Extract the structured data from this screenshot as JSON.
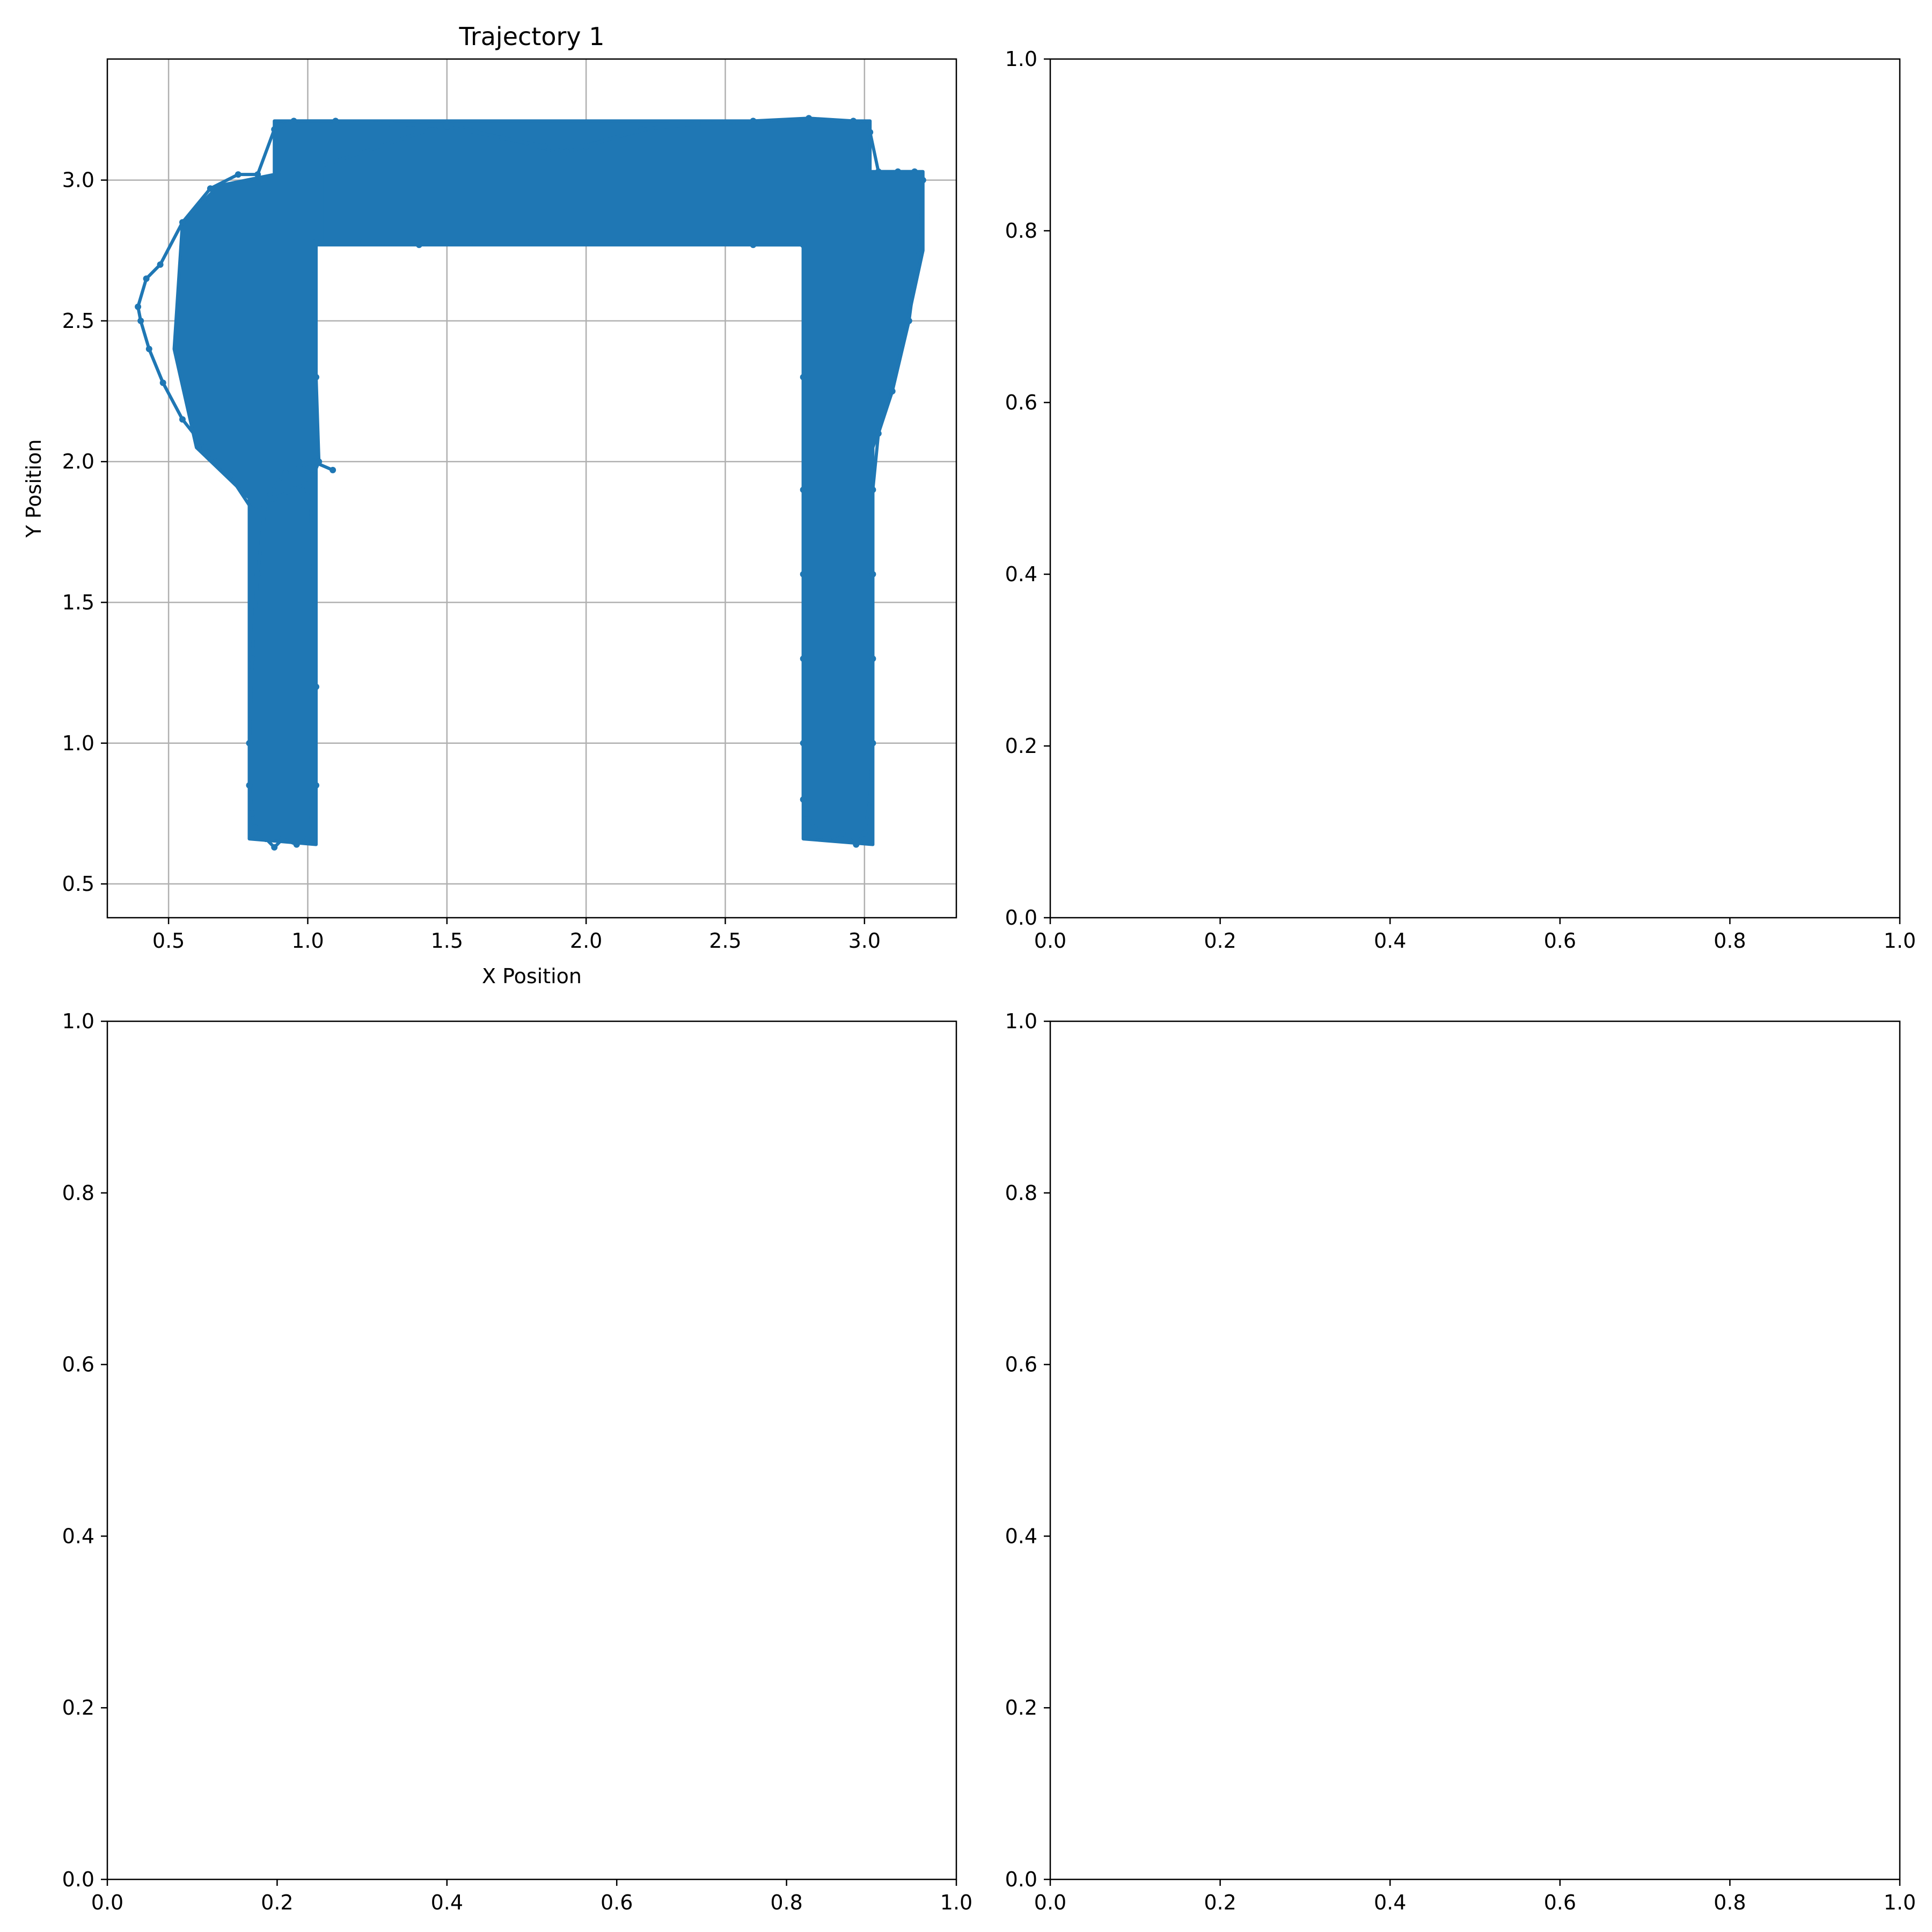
{
  "colors": {
    "series": "#1f77b4",
    "grid": "#b0b0b0",
    "axes": "#000000",
    "background": "#ffffff"
  },
  "chart_data": [
    {
      "type": "line",
      "title": "Trajectory 1",
      "xlabel": "X Position",
      "ylabel": "Y Position",
      "xlim": [
        0.28,
        3.33
      ],
      "ylim": [
        0.38,
        3.43
      ],
      "xticks": [
        0.5,
        1.0,
        1.5,
        2.0,
        2.5,
        3.0
      ],
      "xtick_labels": [
        "0.5",
        "1.0",
        "1.5",
        "2.0",
        "2.5",
        "3.0"
      ],
      "yticks": [
        0.5,
        1.0,
        1.5,
        2.0,
        2.5,
        3.0
      ],
      "ytick_labels": [
        "0.5",
        "1.0",
        "1.5",
        "2.0",
        "2.5",
        "3.0"
      ],
      "grid": true,
      "marker": "dot",
      "series": [
        {
          "description_x_range": [
            0.39,
            3.21
          ],
          "x": [
            1.09,
            1.02,
            0.92,
            0.85,
            0.82,
            0.8,
            0.79,
            0.79,
            0.8,
            0.81,
            0.85,
            0.88,
            0.91,
            0.96,
            1.0,
            1.03,
            1.03,
            1.02,
            1.01,
            0.99,
            0.95,
            0.88,
            0.8,
            0.72,
            0.63,
            0.55,
            0.48,
            0.43,
            0.4,
            0.39,
            0.42,
            0.47,
            0.55,
            0.65,
            0.75,
            0.82,
            0.88,
            0.95,
            1.1,
            1.3,
            1.5,
            1.7,
            1.85,
            1.93,
            2.0,
            2.2,
            2.4,
            2.6,
            2.8,
            2.96,
            3.02,
            3.05,
            3.12,
            3.18,
            3.21,
            3.2,
            3.16,
            3.1,
            3.05,
            3.03,
            3.03,
            3.03,
            3.03,
            3.02,
            3.0,
            2.97,
            2.92,
            2.87,
            2.82,
            2.79,
            2.78,
            2.78,
            2.78,
            2.78,
            2.78,
            2.78,
            2.78,
            2.6,
            2.4,
            2.2,
            2.0,
            1.8,
            1.6,
            1.4,
            1.2,
            1.03,
            1.02,
            1.03,
            1.04,
            1.02,
            0.98
          ],
          "y": [
            1.97,
            2.0,
            1.96,
            1.87,
            1.6,
            1.3,
            1.0,
            0.85,
            0.75,
            0.7,
            0.66,
            0.63,
            0.66,
            0.64,
            0.66,
            0.85,
            1.2,
            1.6,
            1.85,
            1.92,
            1.9,
            1.87,
            1.83,
            1.95,
            2.05,
            2.15,
            2.28,
            2.4,
            2.5,
            2.55,
            2.65,
            2.7,
            2.85,
            2.97,
            3.02,
            3.02,
            3.18,
            3.21,
            3.21,
            3.2,
            3.19,
            3.15,
            3.12,
            3.1,
            3.12,
            3.18,
            3.2,
            3.21,
            3.22,
            3.21,
            3.17,
            3.03,
            3.03,
            3.03,
            3.0,
            2.8,
            2.5,
            2.25,
            2.1,
            1.9,
            1.6,
            1.3,
            1.0,
            0.8,
            0.68,
            0.64,
            0.68,
            0.66,
            0.7,
            0.75,
            0.8,
            1.0,
            1.3,
            1.6,
            1.9,
            2.3,
            2.77,
            2.77,
            2.78,
            2.78,
            2.78,
            2.78,
            2.78,
            2.77,
            2.78,
            2.78,
            2.6,
            2.3,
            2.0,
            1.95,
            1.97
          ]
        }
      ]
    },
    {
      "type": "line",
      "title": "",
      "xlim": [
        0.0,
        1.0
      ],
      "ylim": [
        0.0,
        1.0
      ],
      "xticks": [
        0.0,
        0.2,
        0.4,
        0.6,
        0.8,
        1.0
      ],
      "xtick_labels": [
        "0.0",
        "0.2",
        "0.4",
        "0.6",
        "0.8",
        "1.0"
      ],
      "yticks": [
        0.0,
        0.2,
        0.4,
        0.6,
        0.8,
        1.0
      ],
      "ytick_labels": [
        "0.0",
        "0.2",
        "0.4",
        "0.6",
        "0.8",
        "1.0"
      ],
      "grid": false,
      "series": []
    },
    {
      "type": "line",
      "title": "",
      "xlim": [
        0.0,
        1.0
      ],
      "ylim": [
        0.0,
        1.0
      ],
      "xticks": [
        0.0,
        0.2,
        0.4,
        0.6,
        0.8,
        1.0
      ],
      "xtick_labels": [
        "0.0",
        "0.2",
        "0.4",
        "0.6",
        "0.8",
        "1.0"
      ],
      "yticks": [
        0.0,
        0.2,
        0.4,
        0.6,
        0.8,
        1.0
      ],
      "ytick_labels": [
        "0.0",
        "0.2",
        "0.4",
        "0.6",
        "0.8",
        "1.0"
      ],
      "grid": false,
      "series": []
    },
    {
      "type": "line",
      "title": "",
      "xlim": [
        0.0,
        1.0
      ],
      "ylim": [
        0.0,
        1.0
      ],
      "xticks": [
        0.0,
        0.2,
        0.4,
        0.6,
        0.8,
        1.0
      ],
      "xtick_labels": [
        "0.0",
        "0.2",
        "0.4",
        "0.6",
        "0.8",
        "1.0"
      ],
      "yticks": [
        0.0,
        0.2,
        0.4,
        0.6,
        0.8,
        1.0
      ],
      "ytick_labels": [
        "0.0",
        "0.2",
        "0.4",
        "0.6",
        "0.8",
        "1.0"
      ],
      "grid": false,
      "series": []
    }
  ]
}
